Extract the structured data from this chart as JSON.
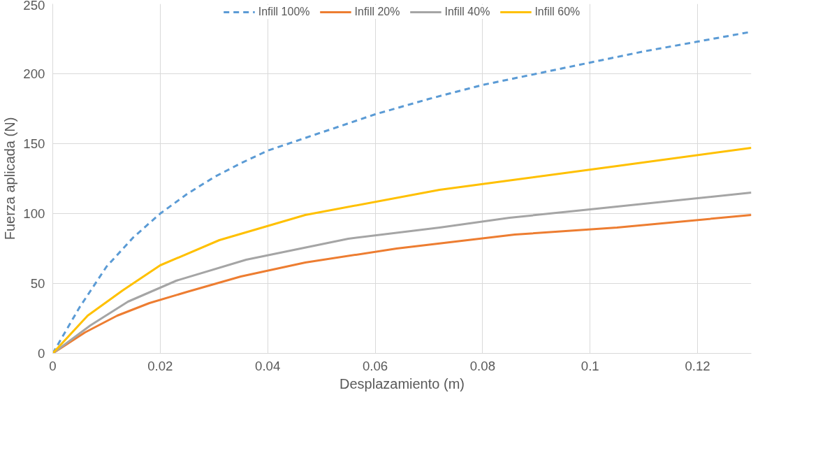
{
  "chart_data": {
    "type": "line",
    "xlabel": "Desplazamiento (m)",
    "ylabel": "Fuerza aplicada (N)",
    "xlim": [
      0,
      0.13
    ],
    "xticks": [
      0,
      0.02,
      0.04,
      0.06,
      0.08,
      0.1,
      0.12
    ],
    "ylim": [
      0,
      250
    ],
    "yticks": [
      0,
      50,
      100,
      150,
      200,
      250
    ],
    "grid": true,
    "legend": "top",
    "marker": "none",
    "series": [
      {
        "name": "Infill 100%",
        "color": "#5b9bd5",
        "line_style": "dashed",
        "x": [
          0,
          0.005,
          0.01,
          0.015,
          0.02,
          0.025,
          0.03,
          0.035,
          0.04,
          0.05,
          0.06,
          0.07,
          0.08,
          0.09,
          0.1,
          0.11,
          0.12,
          0.13
        ],
        "values": [
          0,
          33,
          62,
          83,
          100,
          114,
          126,
          136,
          145,
          158,
          171,
          182,
          192,
          200,
          208,
          216,
          223,
          230
        ]
      },
      {
        "name": "Infill 20%",
        "color": "#ed7d31",
        "line_style": "solid",
        "x": [
          0,
          0.006,
          0.012,
          0.018,
          0.025,
          0.035,
          0.047,
          0.064,
          0.086,
          0.105,
          0.13
        ],
        "values": [
          0,
          15,
          27,
          36,
          44,
          55,
          65,
          75,
          85,
          90,
          99
        ]
      },
      {
        "name": "Infill 40%",
        "color": "#a5a5a5",
        "line_style": "solid",
        "x": [
          0,
          0.007,
          0.014,
          0.023,
          0.036,
          0.055,
          0.072,
          0.085,
          0.1,
          0.13
        ],
        "values": [
          0,
          20,
          37,
          52,
          67,
          82,
          90,
          97,
          103,
          115
        ]
      },
      {
        "name": "Infill 60%",
        "color": "#ffc000",
        "line_style": "solid",
        "x": [
          0,
          0.0065,
          0.013,
          0.02,
          0.031,
          0.047,
          0.072,
          0.105,
          0.13
        ],
        "values": [
          0,
          27,
          45,
          63,
          81,
          99,
          117,
          134,
          147
        ]
      }
    ]
  }
}
